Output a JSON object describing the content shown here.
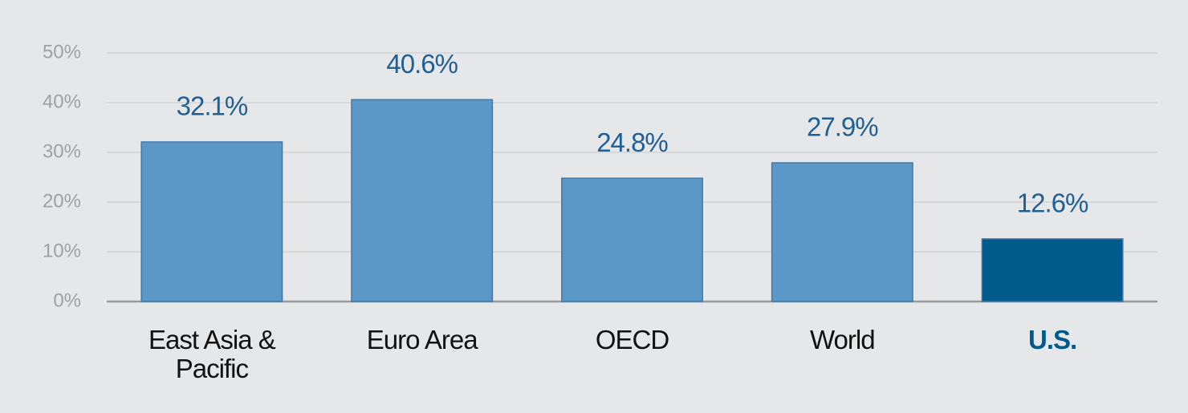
{
  "chart_data": {
    "type": "bar",
    "categories": [
      "East Asia & Pacific",
      "Euro Area",
      "OECD",
      "World",
      "U.S."
    ],
    "values": [
      32.1,
      40.6,
      24.8,
      27.9,
      12.6
    ],
    "value_labels": [
      "32.1%",
      "40.6%",
      "24.8%",
      "27.9%",
      "12.6%"
    ],
    "color": "#5b97c7",
    "colors": [
      "#5b97c7",
      "#5b97c7",
      "#5b97c7",
      "#5b97c7",
      "#005a8b"
    ],
    "ylim": [
      0,
      50
    ],
    "yticks": [
      {
        "value": 0,
        "label": "0%"
      },
      {
        "value": 10,
        "label": "10%"
      },
      {
        "value": 20,
        "label": "20%"
      },
      {
        "value": 30,
        "label": "30%"
      },
      {
        "value": 40,
        "label": "40%"
      },
      {
        "value": 50,
        "label": "50%"
      }
    ],
    "grid": true
  }
}
